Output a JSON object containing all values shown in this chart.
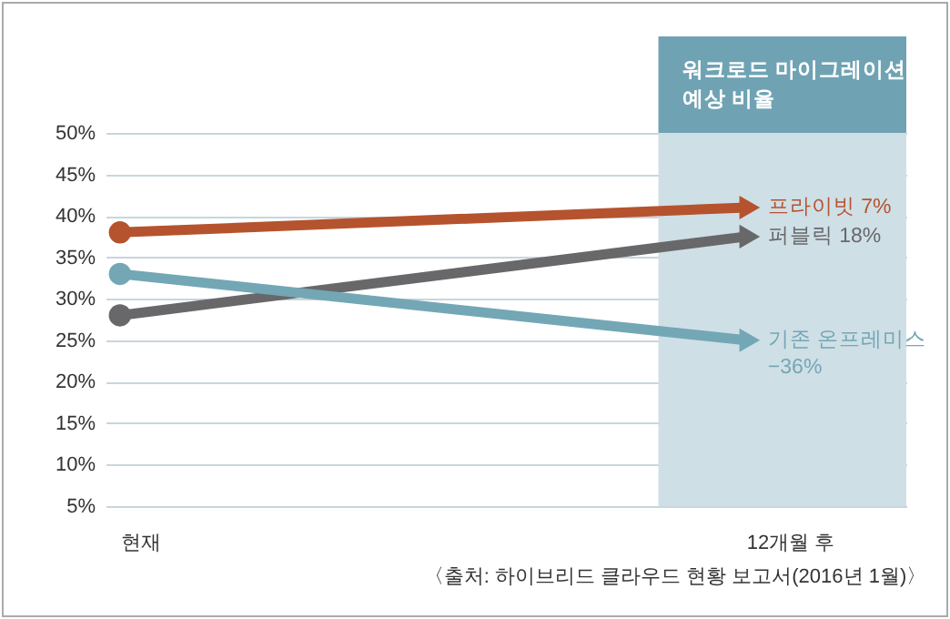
{
  "chart_data": {
    "type": "line",
    "categories": [
      "현재",
      "12개월 후"
    ],
    "series": [
      {
        "name": "프라이빗 7%",
        "color": "#b5532e",
        "values": [
          38,
          41
        ]
      },
      {
        "name": "퍼블릭 18%",
        "color": "#68686a",
        "values": [
          28,
          37.5
        ]
      },
      {
        "name": "기존 온프레미스 −36%",
        "color": "#73a7b5",
        "values": [
          33,
          25
        ]
      }
    ],
    "ylim": [
      5,
      50
    ],
    "yticks": [
      {
        "value": 5,
        "label": "5%"
      },
      {
        "value": 10,
        "label": "10%"
      },
      {
        "value": 15,
        "label": "15%"
      },
      {
        "value": 20,
        "label": "20%"
      },
      {
        "value": 25,
        "label": "25%"
      },
      {
        "value": 30,
        "label": "30%"
      },
      {
        "value": 35,
        "label": "35%"
      },
      {
        "value": 40,
        "label": "40%"
      },
      {
        "value": 45,
        "label": "45%"
      },
      {
        "value": 50,
        "label": "50%"
      }
    ],
    "grid": "y",
    "marker": "circle",
    "line_style": "solid",
    "bands": [
      {
        "axis": "x",
        "from": "12개월 후",
        "to": "12개월 후",
        "label": "워크로드 마이그레이션 예상 비율",
        "color": "#cfdfe6"
      }
    ],
    "annotations": [
      "〈출처: 하이브리드 클라우드 현황 보고서(2016년 1월)〉"
    ]
  }
}
